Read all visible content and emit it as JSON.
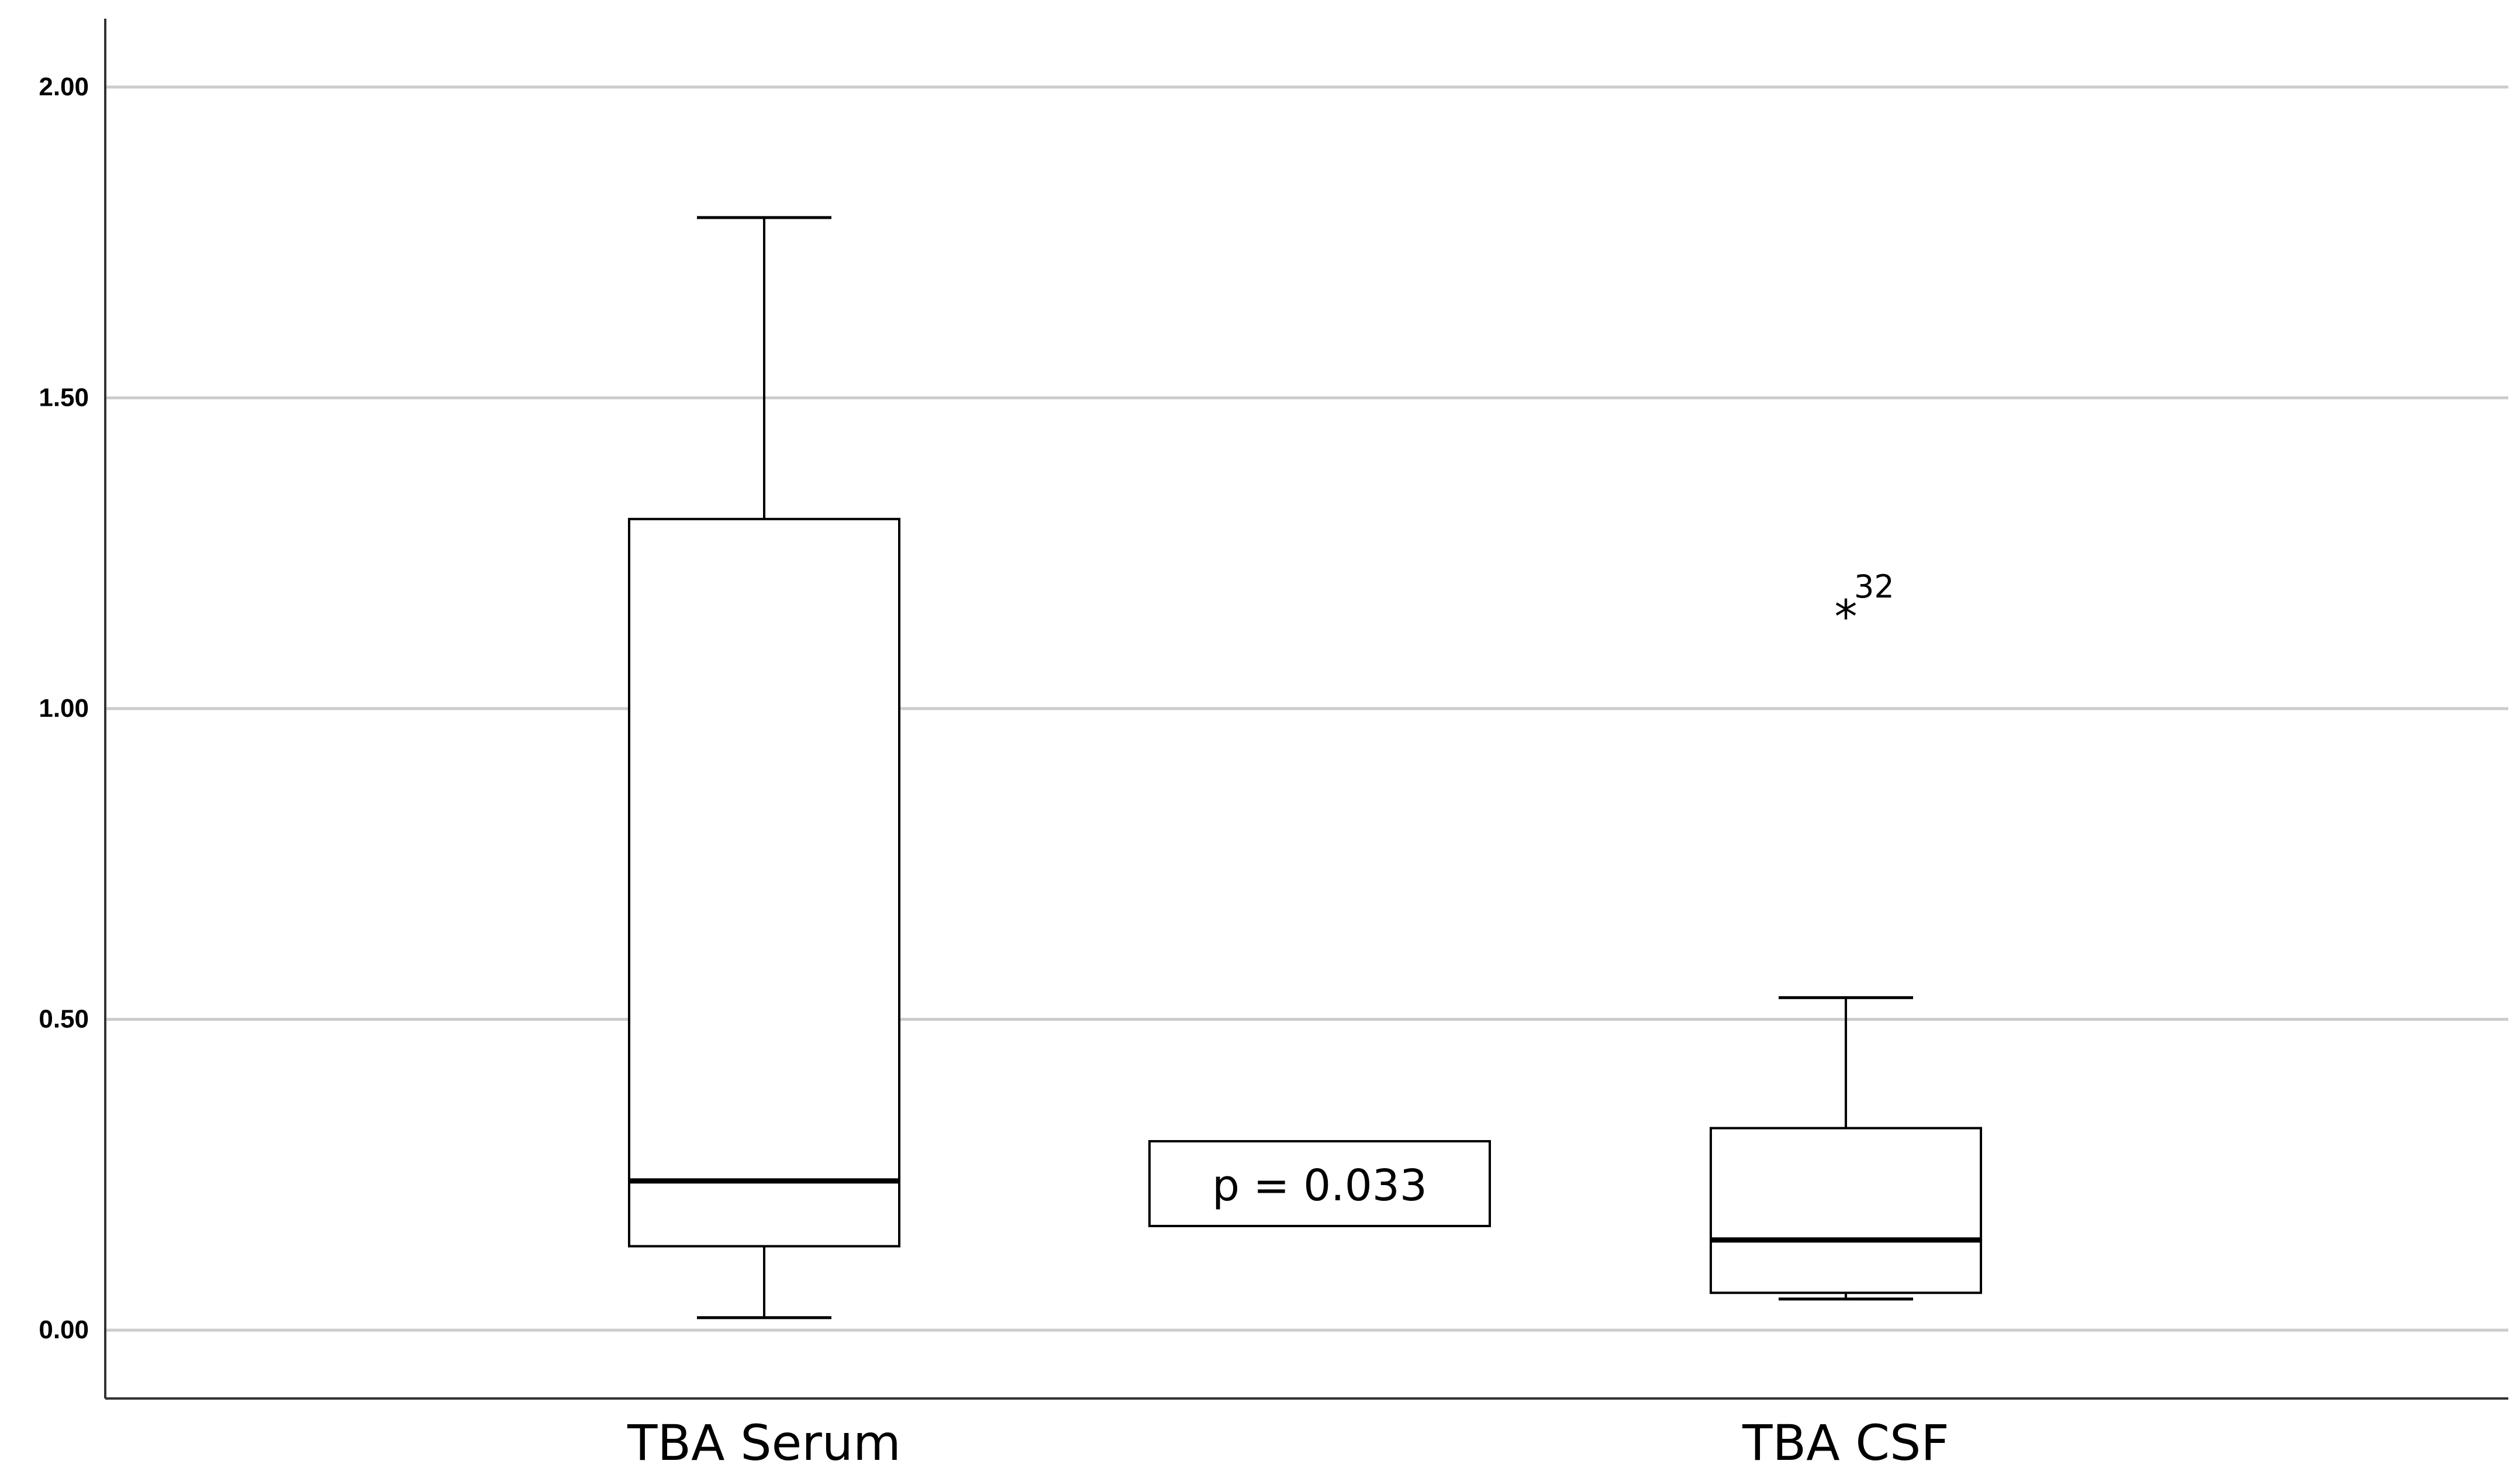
{
  "chart_data": {
    "type": "box",
    "categories": [
      "TBA Serum",
      "TBA CSF"
    ],
    "boxes": [
      {
        "name": "TBA Serum",
        "whisker_low": 0.02,
        "q1": 0.135,
        "median": 0.24,
        "q3": 1.305,
        "whisker_high": 1.79
      },
      {
        "name": "TBA CSF",
        "whisker_low": 0.05,
        "q1": 0.06,
        "median": 0.145,
        "q3": 0.325,
        "whisker_high": 0.535
      }
    ],
    "outliers": [
      {
        "category": "TBA CSF",
        "value": 1.16,
        "label": "32",
        "marker": "*"
      }
    ],
    "annotation": {
      "text": "p = 0.033"
    },
    "y_ticks": [
      "0.00",
      "0.50",
      "1.00",
      "1.50",
      "2.00"
    ],
    "ylim": [
      -0.11,
      2.11
    ],
    "grid": true,
    "title": "",
    "xlabel": "",
    "ylabel": ""
  },
  "colors": {
    "grid": "#cccccc",
    "axis": "#333333",
    "box_fill": "#ffffff",
    "stroke": "#000000"
  }
}
